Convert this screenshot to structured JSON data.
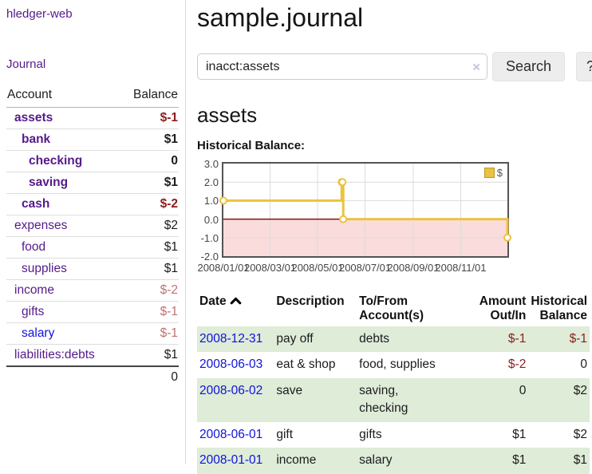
{
  "sidebar": {
    "app_title": "hledger-web",
    "nav": {
      "journal": "Journal"
    },
    "accounts_table": {
      "headers": {
        "account": "Account",
        "balance": "Balance"
      },
      "rows": [
        {
          "name": "assets",
          "balance": "$-1",
          "depth": 0,
          "bold": true,
          "neg": "strong",
          "link_style": "purple"
        },
        {
          "name": "bank",
          "balance": "$1",
          "depth": 1,
          "bold": true,
          "neg": null,
          "link_style": "purple"
        },
        {
          "name": "checking",
          "balance": "0",
          "depth": 2,
          "bold": true,
          "neg": null,
          "link_style": "purple"
        },
        {
          "name": "saving",
          "balance": "$1",
          "depth": 2,
          "bold": true,
          "neg": null,
          "link_style": "purple"
        },
        {
          "name": "cash",
          "balance": "$-2",
          "depth": 1,
          "bold": true,
          "neg": "strong",
          "link_style": "purple"
        },
        {
          "name": "expenses",
          "balance": "$2",
          "depth": 0,
          "bold": false,
          "neg": null,
          "link_style": "purple"
        },
        {
          "name": "food",
          "balance": "$1",
          "depth": 1,
          "bold": false,
          "neg": null,
          "link_style": "purple"
        },
        {
          "name": "supplies",
          "balance": "$1",
          "depth": 1,
          "bold": false,
          "neg": null,
          "link_style": "purple"
        },
        {
          "name": "income",
          "balance": "$-2",
          "depth": 0,
          "bold": false,
          "neg": "soft",
          "link_style": "purple"
        },
        {
          "name": "gifts",
          "balance": "$-1",
          "depth": 1,
          "bold": false,
          "neg": "soft",
          "link_style": "purple"
        },
        {
          "name": "salary",
          "balance": "$-1",
          "depth": 1,
          "bold": false,
          "neg": "soft",
          "link_style": "blue"
        },
        {
          "name": "liabilities:debts",
          "balance": "$1",
          "depth": 0,
          "bold": false,
          "neg": null,
          "link_style": "purple"
        }
      ],
      "total": "0"
    }
  },
  "header": {
    "title": "sample.journal"
  },
  "search": {
    "query": "inacct:assets",
    "clear_icon": "×",
    "search_label": "Search",
    "help_label": "?"
  },
  "main": {
    "account_heading": "assets"
  },
  "chart_data": {
    "type": "line",
    "step": true,
    "title": "Historical Balance:",
    "series": [
      {
        "name": "$",
        "color": "#edc240",
        "points": [
          {
            "x": "2008-01-01",
            "y": 1
          },
          {
            "x": "2008-06-01",
            "y": 2
          },
          {
            "x": "2008-06-02",
            "y": 2
          },
          {
            "x": "2008-06-03",
            "y": 0
          },
          {
            "x": "2008-12-31",
            "y": -1
          }
        ]
      }
    ],
    "x_range": [
      "2008-01-01",
      "2008-12-31"
    ],
    "ylim": [
      -2,
      3
    ],
    "x_tick_labels": [
      "2008/01/01",
      "2008/03/01",
      "2008/05/01",
      "2008/07/01",
      "2008/09/01",
      "2008/11/01"
    ],
    "y_tick_labels": [
      "3.0",
      "2.0",
      "1.0",
      "0.0",
      "-1.0",
      "-2.0"
    ],
    "grid": true,
    "legend_position": "top-right",
    "negative_region_fill": "#fadcdc",
    "zero_line_color": "#871111",
    "grid_color": "#dcdcdc",
    "border_color": "#545454"
  },
  "register": {
    "headers": {
      "date": "Date",
      "description": "Description",
      "tofrom": "To/From\nAccount(s)",
      "amount": "Amount\nOut/In",
      "balance": "Historical\nBalance"
    },
    "rows": [
      {
        "date": "2008-12-31",
        "description": "pay off",
        "accounts": "debts",
        "amount": "$-1",
        "balance": "$-1"
      },
      {
        "date": "2008-06-03",
        "description": "eat & shop",
        "accounts": "food, supplies",
        "amount": "$-2",
        "balance": "0"
      },
      {
        "date": "2008-06-02",
        "description": "save",
        "accounts": "saving,\nchecking",
        "amount": "0",
        "balance": "$2"
      },
      {
        "date": "2008-06-01",
        "description": "gift",
        "accounts": "gifts",
        "amount": "$1",
        "balance": "$2"
      },
      {
        "date": "2008-01-01",
        "description": "income",
        "accounts": "salary",
        "amount": "$1",
        "balance": "$1"
      }
    ]
  }
}
